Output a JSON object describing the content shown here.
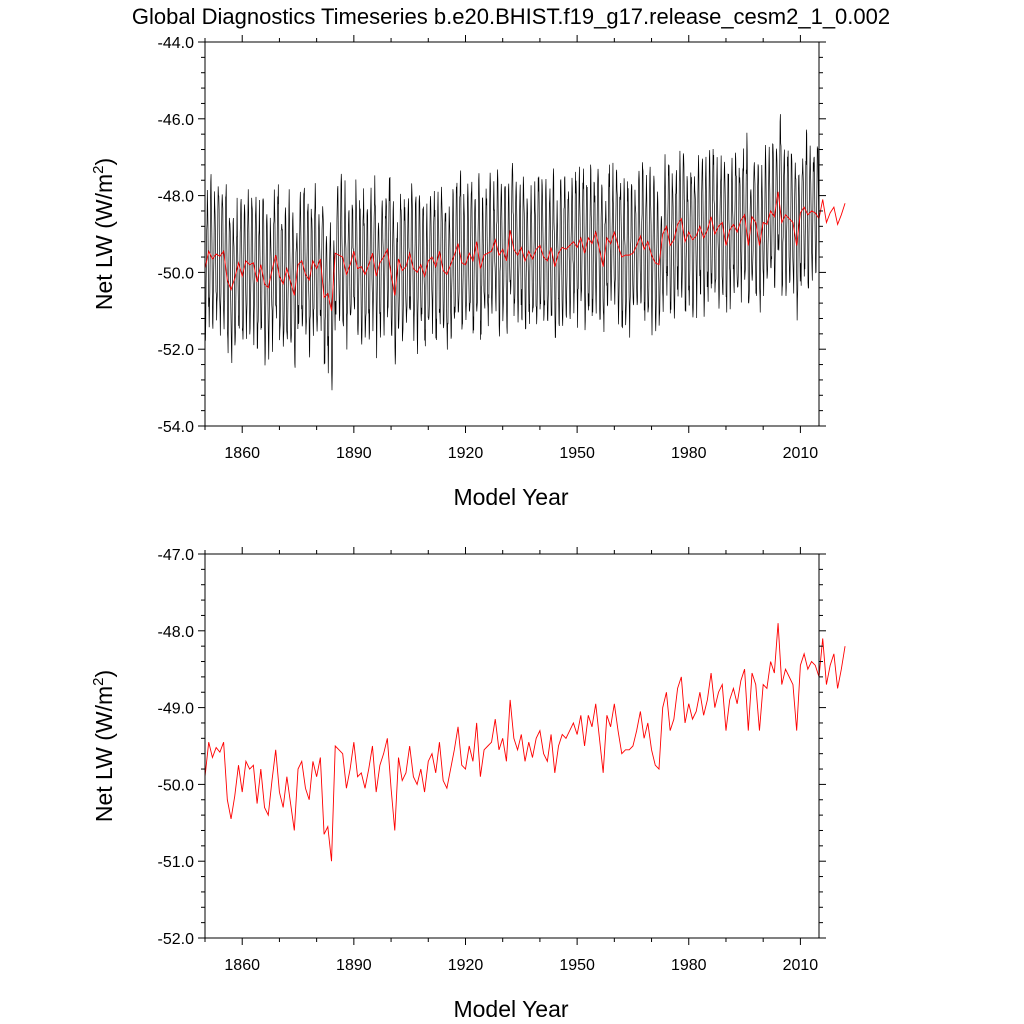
{
  "figure": {
    "title": "Global Diagnostics Timeseries b.e20.BHIST.f19_g17.release_cesm2_1_0.002"
  },
  "chart_data": [
    {
      "type": "line",
      "title": "Global Diagnostics Timeseries b.e20.BHIST.f19_g17.release_cesm2_1_0.002",
      "xlabel": "Model Year",
      "ylabel_main": "Net LW (W/m",
      "ylabel_sup": "2",
      "ylabel_end": ")",
      "xlim": [
        1850,
        2015
      ],
      "ylim": [
        -54,
        -44
      ],
      "xticks": [
        1860,
        1890,
        1920,
        1950,
        1980,
        2010
      ],
      "xtick_labels": [
        "1860",
        "1890",
        "1920",
        "1950",
        "1980",
        "2010"
      ],
      "yticks": [
        -54,
        -52,
        -50,
        -48,
        -46,
        -44
      ],
      "ytick_labels": [
        "-54.0",
        "-52.0",
        "-50.0",
        "-48.0",
        "-46.0",
        "-44.0"
      ],
      "grid": false,
      "series": [
        {
          "role": "monthly",
          "color": "#000000",
          "start_year": 1850,
          "annual_cycle_amplitude": 1.7,
          "annual_cycle_peak_month": 7,
          "noise_amplitude": 0.45
        },
        {
          "role": "annual",
          "color": "#ff0000"
        }
      ]
    },
    {
      "type": "line",
      "xlabel": "Model Year",
      "ylabel_main": "Net LW (W/m",
      "ylabel_sup": "2",
      "ylabel_end": ")",
      "xlim": [
        1850,
        2015
      ],
      "ylim": [
        -52,
        -47
      ],
      "xticks": [
        1860,
        1890,
        1920,
        1950,
        1980,
        2010
      ],
      "xtick_labels": [
        "1860",
        "1890",
        "1920",
        "1950",
        "1980",
        "2010"
      ],
      "yticks": [
        -52,
        -51,
        -50,
        -49,
        -48,
        -47
      ],
      "ytick_labels": [
        "-52.0",
        "-51.0",
        "-50.0",
        "-49.0",
        "-48.0",
        "-47.0"
      ],
      "grid": false,
      "series": [
        {
          "role": "annual",
          "color": "#ff0000",
          "x_start": 1850,
          "x_step": 1,
          "values": [
            -49.9,
            -49.45,
            -49.65,
            -49.52,
            -49.58,
            -49.45,
            -50.2,
            -50.45,
            -50.15,
            -49.75,
            -50.1,
            -49.7,
            -49.8,
            -49.75,
            -50.25,
            -49.8,
            -50.3,
            -50.4,
            -49.95,
            -49.55,
            -50.1,
            -50.3,
            -49.9,
            -50.25,
            -50.6,
            -49.8,
            -49.7,
            -50.05,
            -50.2,
            -49.7,
            -49.9,
            -49.65,
            -50.65,
            -50.55,
            -51.0,
            -49.5,
            -49.55,
            -49.6,
            -50.05,
            -49.8,
            -49.45,
            -49.9,
            -49.85,
            -50.05,
            -49.8,
            -49.5,
            -50.1,
            -49.75,
            -49.6,
            -49.4,
            -50.05,
            -50.6,
            -49.65,
            -49.95,
            -49.85,
            -49.5,
            -49.9,
            -50.0,
            -49.8,
            -50.1,
            -49.7,
            -49.6,
            -49.85,
            -49.45,
            -49.95,
            -50.05,
            -49.8,
            -49.55,
            -49.25,
            -49.75,
            -49.8,
            -49.5,
            -49.7,
            -49.2,
            -49.9,
            -49.55,
            -49.5,
            -49.45,
            -49.15,
            -49.55,
            -49.4,
            -49.7,
            -48.9,
            -49.4,
            -49.55,
            -49.35,
            -49.7,
            -49.45,
            -49.65,
            -49.4,
            -49.3,
            -49.6,
            -49.7,
            -49.35,
            -49.85,
            -49.5,
            -49.35,
            -49.4,
            -49.3,
            -49.2,
            -49.35,
            -49.1,
            -49.5,
            -49.1,
            -49.25,
            -48.95,
            -49.4,
            -49.85,
            -49.1,
            -49.25,
            -48.95,
            -49.3,
            -49.6,
            -49.55,
            -49.55,
            -49.5,
            -49.3,
            -49.05,
            -49.4,
            -49.2,
            -49.55,
            -49.75,
            -49.8,
            -49.0,
            -48.8,
            -49.3,
            -49.15,
            -48.75,
            -48.6,
            -49.2,
            -48.95,
            -49.15,
            -49.05,
            -48.8,
            -49.1,
            -48.9,
            -48.55,
            -49.0,
            -48.8,
            -48.7,
            -49.3,
            -48.9,
            -48.75,
            -48.95,
            -48.65,
            -48.5,
            -49.3,
            -48.55,
            -48.7,
            -49.3,
            -48.7,
            -48.75,
            -48.4,
            -48.55,
            -47.9,
            -48.7,
            -48.5,
            -48.6,
            -48.7,
            -49.3,
            -48.45,
            -48.3,
            -48.5,
            -48.4,
            -48.45,
            -48.6,
            -48.1,
            -48.7,
            -48.45,
            -48.3,
            -48.75,
            -48.5,
            -48.2
          ]
        }
      ]
    }
  ]
}
